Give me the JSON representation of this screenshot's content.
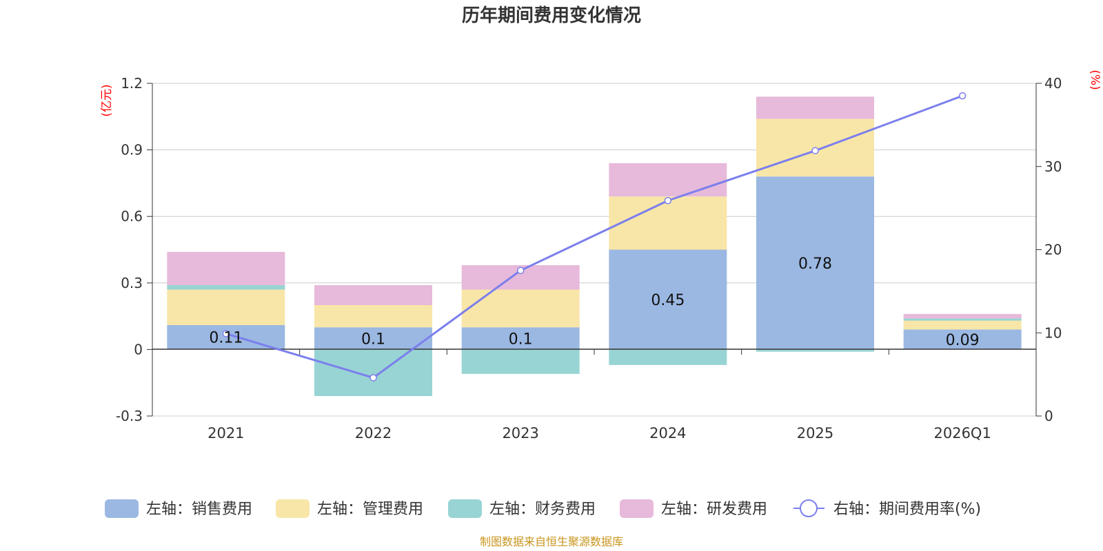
{
  "chart_data": {
    "type": "bar",
    "stacked": true,
    "title": "历年期间费用变化情况",
    "categories": [
      "2021",
      "2022",
      "2023",
      "2024",
      "2025",
      "2026Q1"
    ],
    "left_axis": {
      "unit": "(亿元)",
      "ylim": [
        -0.3,
        1.2
      ],
      "ticks": [
        -0.3,
        0,
        0.3,
        0.6,
        0.9,
        1.2
      ],
      "tick_labels": [
        "-0.3",
        "0",
        "0.3",
        "0.6",
        "0.9",
        "1.2"
      ]
    },
    "right_axis": {
      "unit": "(%)",
      "ylim": [
        0,
        40
      ],
      "ticks": [
        0,
        10,
        20,
        30,
        40
      ],
      "tick_labels": [
        "0",
        "10",
        "20",
        "30",
        "40"
      ]
    },
    "series": [
      {
        "name": "左轴：销售费用",
        "axis": "left",
        "color": "#9bb8e2",
        "values": [
          0.11,
          0.1,
          0.1,
          0.45,
          0.78,
          0.09
        ],
        "labels": [
          "0.11",
          "0.1",
          "0.1",
          "0.45",
          "0.78",
          "0.09"
        ]
      },
      {
        "name": "左轴：管理费用",
        "axis": "left",
        "color": "#f8e6a8",
        "values": [
          0.16,
          0.1,
          0.17,
          0.24,
          0.26,
          0.04
        ]
      },
      {
        "name": "左轴：财务费用",
        "axis": "left",
        "color": "#98d4d4",
        "values": [
          0.02,
          -0.21,
          -0.11,
          -0.07,
          -0.01,
          0.01
        ]
      },
      {
        "name": "左轴：研发费用",
        "axis": "left",
        "color": "#e7b9da",
        "values": [
          0.15,
          0.09,
          0.11,
          0.15,
          0.1,
          0.02
        ]
      }
    ],
    "line": {
      "name": "右轴：期间费用率(%)",
      "axis": "right",
      "color": "#7b7fec",
      "values": [
        9.9,
        4.6,
        17.5,
        25.9,
        31.9,
        38.5
      ]
    },
    "source": "制图数据来自恒生聚源数据库"
  }
}
